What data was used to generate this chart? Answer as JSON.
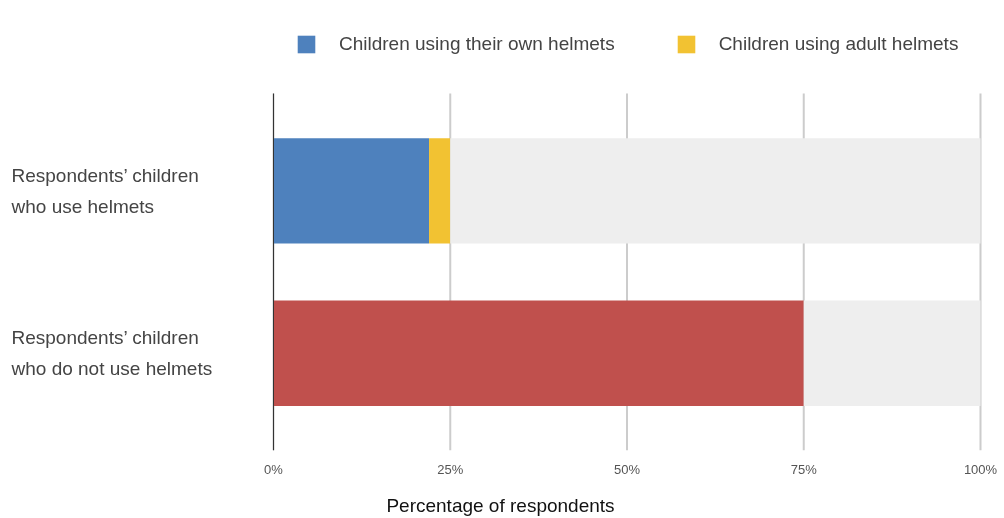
{
  "chart_data": {
    "type": "bar",
    "orientation": "horizontal",
    "stacked": true,
    "categories": [
      "Respondents’ children who use helmets",
      "Respondents’ children who do not use helmets"
    ],
    "series": [
      {
        "name": "Children using their own helmets",
        "color": "#4e81bd",
        "values": [
          22,
          null
        ]
      },
      {
        "name": "Children using adult helmets",
        "color": "#f2c232",
        "values": [
          3,
          null
        ]
      },
      {
        "color": "#c0504d",
        "values": [
          null,
          75
        ]
      },
      {
        "color": "#eeeeee",
        "values": [
          75,
          25
        ]
      }
    ],
    "xlabel": "Percentage of respondents",
    "xlim": [
      0,
      100
    ],
    "xticks": [
      {
        "value": 0,
        "label": "0%"
      },
      {
        "value": 25,
        "label": "25%"
      },
      {
        "value": 50,
        "label": "50%"
      },
      {
        "value": 75,
        "label": "75%"
      },
      {
        "value": 100,
        "label": "100%"
      }
    ],
    "grid": "x",
    "legend": "top"
  }
}
